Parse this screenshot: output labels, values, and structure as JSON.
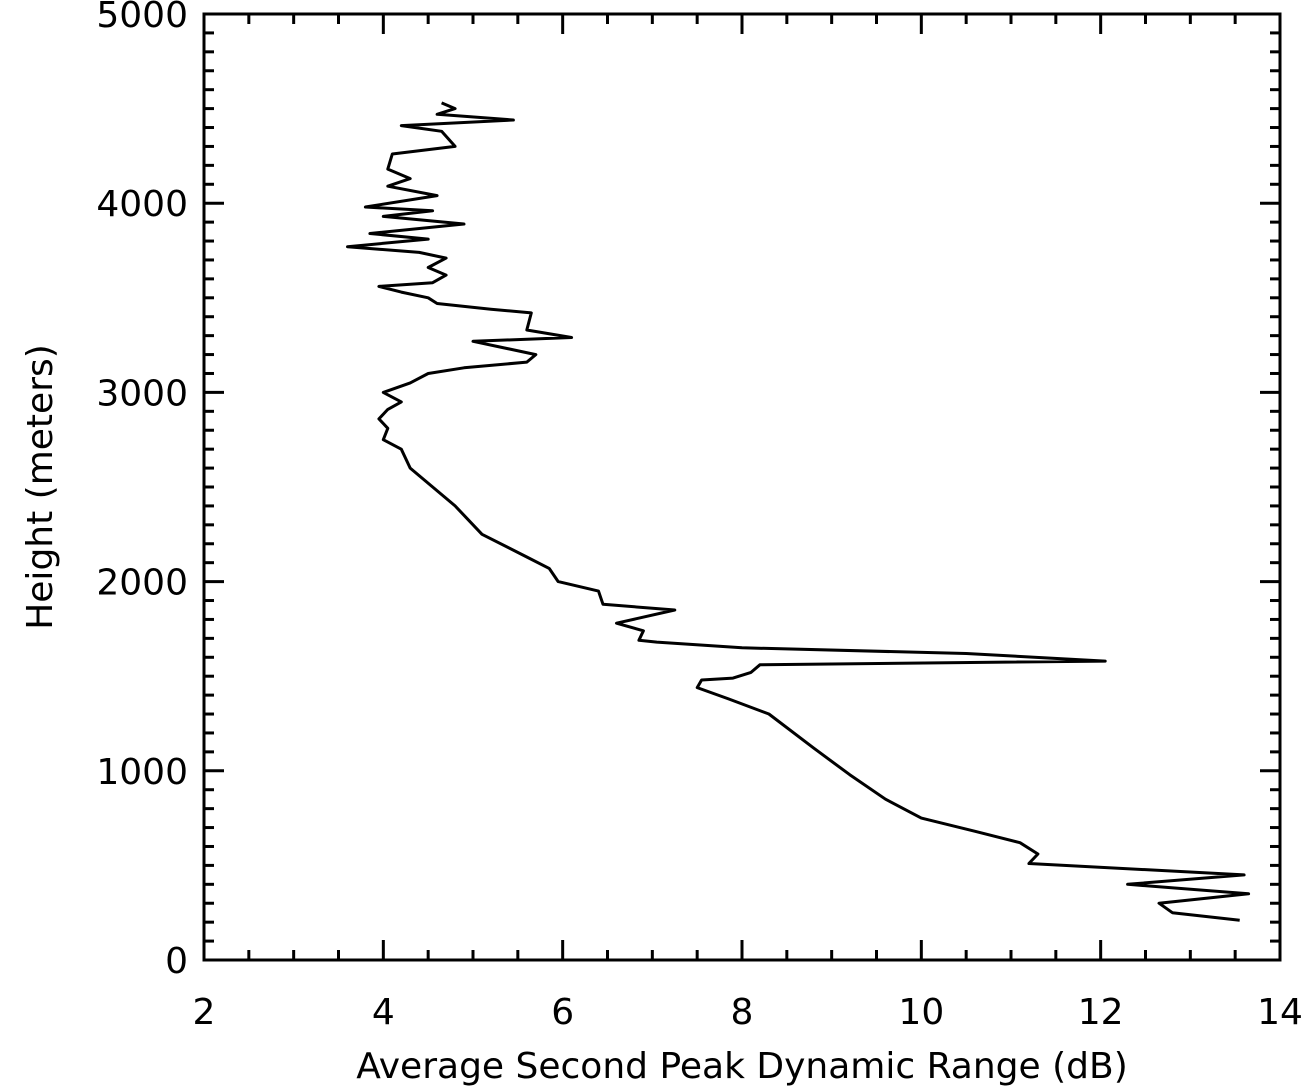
{
  "chart_data": {
    "type": "line",
    "title": "",
    "xlabel": "Average Second Peak Dynamic Range (dB)",
    "ylabel": "Height (meters)",
    "xlim": [
      2,
      14
    ],
    "ylim": [
      0,
      5000
    ],
    "x_ticks": [
      "2",
      "4",
      "6",
      "8",
      "10",
      "12",
      "14"
    ],
    "y_ticks": [
      "0",
      "1000",
      "2000",
      "3000",
      "4000",
      "5000"
    ],
    "x_tick_values": [
      2,
      4,
      6,
      8,
      10,
      12,
      14
    ],
    "y_tick_values": [
      0,
      1000,
      2000,
      3000,
      4000,
      5000
    ],
    "grid": false,
    "line_color": "#000000",
    "series": [
      {
        "points": [
          [
            13.55,
            210
          ],
          [
            12.8,
            250
          ],
          [
            12.65,
            300
          ],
          [
            13.65,
            350
          ],
          [
            12.3,
            400
          ],
          [
            13.6,
            450
          ],
          [
            11.2,
            510
          ],
          [
            11.3,
            560
          ],
          [
            11.1,
            620
          ],
          [
            10.6,
            680
          ],
          [
            10.0,
            750
          ],
          [
            9.6,
            850
          ],
          [
            9.2,
            980
          ],
          [
            8.8,
            1120
          ],
          [
            8.3,
            1300
          ],
          [
            7.85,
            1380
          ],
          [
            7.5,
            1440
          ],
          [
            7.55,
            1480
          ],
          [
            7.9,
            1490
          ],
          [
            8.1,
            1520
          ],
          [
            8.2,
            1560
          ],
          [
            12.05,
            1580
          ],
          [
            10.5,
            1620
          ],
          [
            8.0,
            1650
          ],
          [
            7.05,
            1680
          ],
          [
            6.85,
            1690
          ],
          [
            6.9,
            1740
          ],
          [
            6.6,
            1780
          ],
          [
            7.25,
            1850
          ],
          [
            6.45,
            1880
          ],
          [
            6.4,
            1950
          ],
          [
            5.95,
            2000
          ],
          [
            5.85,
            2070
          ],
          [
            5.6,
            2130
          ],
          [
            5.1,
            2250
          ],
          [
            4.8,
            2400
          ],
          [
            4.3,
            2600
          ],
          [
            4.2,
            2700
          ],
          [
            4.0,
            2750
          ],
          [
            4.05,
            2810
          ],
          [
            3.95,
            2860
          ],
          [
            4.05,
            2910
          ],
          [
            4.2,
            2950
          ],
          [
            4.0,
            3000
          ],
          [
            4.3,
            3050
          ],
          [
            4.5,
            3100
          ],
          [
            4.9,
            3130
          ],
          [
            5.6,
            3160
          ],
          [
            5.7,
            3200
          ],
          [
            5.3,
            3240
          ],
          [
            5.0,
            3270
          ],
          [
            6.1,
            3290
          ],
          [
            5.6,
            3330
          ],
          [
            5.65,
            3420
          ],
          [
            5.2,
            3440
          ],
          [
            4.6,
            3470
          ],
          [
            4.5,
            3500
          ],
          [
            4.2,
            3530
          ],
          [
            3.95,
            3560
          ],
          [
            4.55,
            3580
          ],
          [
            4.7,
            3620
          ],
          [
            4.5,
            3660
          ],
          [
            4.7,
            3710
          ],
          [
            4.4,
            3740
          ],
          [
            3.6,
            3770
          ],
          [
            4.5,
            3810
          ],
          [
            3.85,
            3840
          ],
          [
            4.9,
            3890
          ],
          [
            4.0,
            3930
          ],
          [
            4.55,
            3960
          ],
          [
            3.8,
            3980
          ],
          [
            4.6,
            4040
          ],
          [
            4.05,
            4090
          ],
          [
            4.3,
            4130
          ],
          [
            4.05,
            4180
          ],
          [
            4.1,
            4260
          ],
          [
            4.8,
            4300
          ],
          [
            4.65,
            4380
          ],
          [
            4.2,
            4410
          ],
          [
            5.45,
            4440
          ],
          [
            4.6,
            4470
          ],
          [
            4.8,
            4500
          ],
          [
            4.65,
            4530
          ]
        ]
      }
    ]
  }
}
